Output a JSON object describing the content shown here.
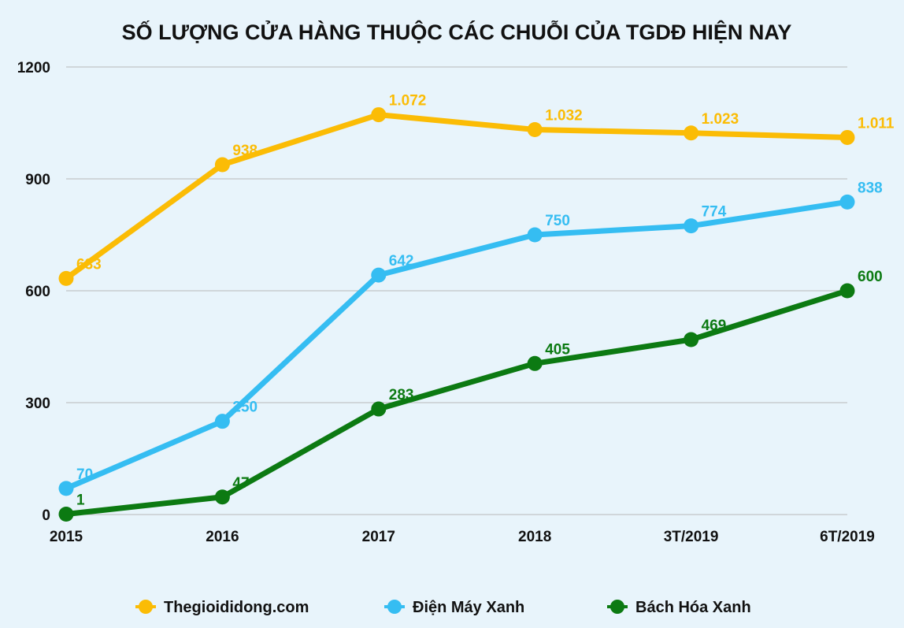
{
  "chart_data": {
    "type": "line",
    "title": "SỐ LƯỢNG CỬA HÀNG THUỘC CÁC CHUỖI CỦA TGDĐ HIỆN NAY",
    "categories": [
      "2015",
      "2016",
      "2017",
      "2018",
      "3T/2019",
      "6T/2019"
    ],
    "ylim": [
      0,
      1200
    ],
    "yticks": [
      0,
      300,
      600,
      900,
      1200
    ],
    "grid": true,
    "legend_position": "bottom",
    "series": [
      {
        "name": "Thegioididong.com",
        "color": "#fbbc05",
        "values": [
          633,
          938,
          1072,
          1032,
          1023,
          1011
        ],
        "labels": [
          "633",
          "938",
          "1.072",
          "1.032",
          "1.023",
          "1.011"
        ]
      },
      {
        "name": "Điện Máy Xanh",
        "color": "#35bdf2",
        "values": [
          70,
          250,
          642,
          750,
          774,
          838
        ],
        "labels": [
          "70",
          "250",
          "642",
          "750",
          "774",
          "838"
        ]
      },
      {
        "name": "Bách Hóa Xanh",
        "color": "#0c7a12",
        "values": [
          1,
          47,
          283,
          405,
          469,
          600
        ],
        "labels": [
          "1",
          "47",
          "283",
          "405",
          "469",
          "600"
        ]
      }
    ]
  }
}
